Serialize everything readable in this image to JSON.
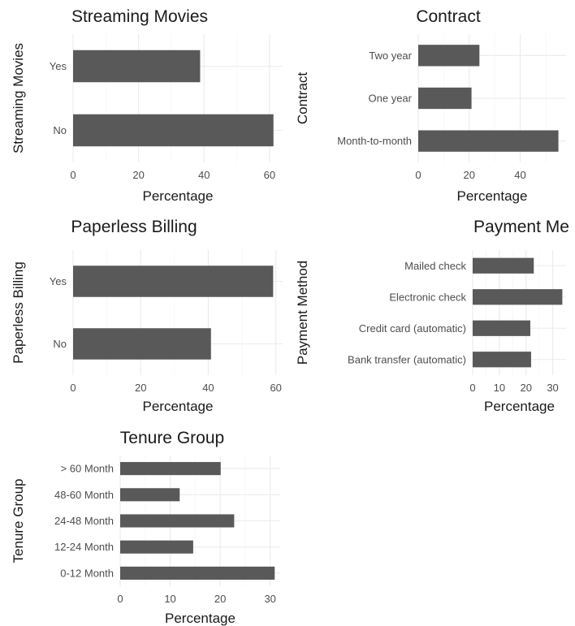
{
  "chart_data": [
    {
      "type": "bar",
      "orientation": "horizontal",
      "title": "Streaming Movies",
      "xlabel": "Percentage",
      "ylabel": "Streaming Movies",
      "categories": [
        "No",
        "Yes"
      ],
      "values": [
        61.2,
        38.8
      ],
      "xlim": [
        0,
        64
      ],
      "xticks": [
        0,
        20,
        40,
        60
      ],
      "grid": true
    },
    {
      "type": "bar",
      "orientation": "horizontal",
      "title": "Contract",
      "xlabel": "Percentage",
      "ylabel": "Contract",
      "categories": [
        "Month-to-month",
        "One year",
        "Two year"
      ],
      "values": [
        55.0,
        20.9,
        24.0
      ],
      "xlim": [
        0,
        58
      ],
      "xticks": [
        0,
        20,
        40
      ],
      "grid": true
    },
    {
      "type": "bar",
      "orientation": "horizontal",
      "title": "Paperless Billing",
      "xlabel": "Percentage",
      "ylabel": "Paperless Billing",
      "categories": [
        "No",
        "Yes"
      ],
      "values": [
        40.8,
        59.2
      ],
      "xlim": [
        0,
        62
      ],
      "xticks": [
        0,
        20,
        40,
        60
      ],
      "grid": true
    },
    {
      "type": "bar",
      "orientation": "horizontal",
      "title": "Payment Me",
      "xlabel": "Percentage",
      "ylabel": "Payment Method",
      "categories": [
        "Bank transfer (automatic)",
        "Credit card (automatic)",
        "Electronic check",
        "Mailed check"
      ],
      "values": [
        21.9,
        21.6,
        33.6,
        22.9
      ],
      "xlim": [
        0,
        35
      ],
      "xticks": [
        0,
        10,
        20,
        30
      ],
      "grid": true
    },
    {
      "type": "bar",
      "orientation": "horizontal",
      "title": "Tenure Group",
      "xlabel": "Percentage",
      "ylabel": "Tenure Group",
      "categories": [
        "0-12 Month",
        "12-24 Month",
        "24-48 Month",
        "48-60 Month",
        "> 60 Month"
      ],
      "values": [
        30.9,
        14.6,
        22.8,
        11.9,
        20.1
      ],
      "xlim": [
        0,
        32
      ],
      "xticks": [
        0,
        10,
        20,
        30
      ],
      "grid": true
    }
  ]
}
